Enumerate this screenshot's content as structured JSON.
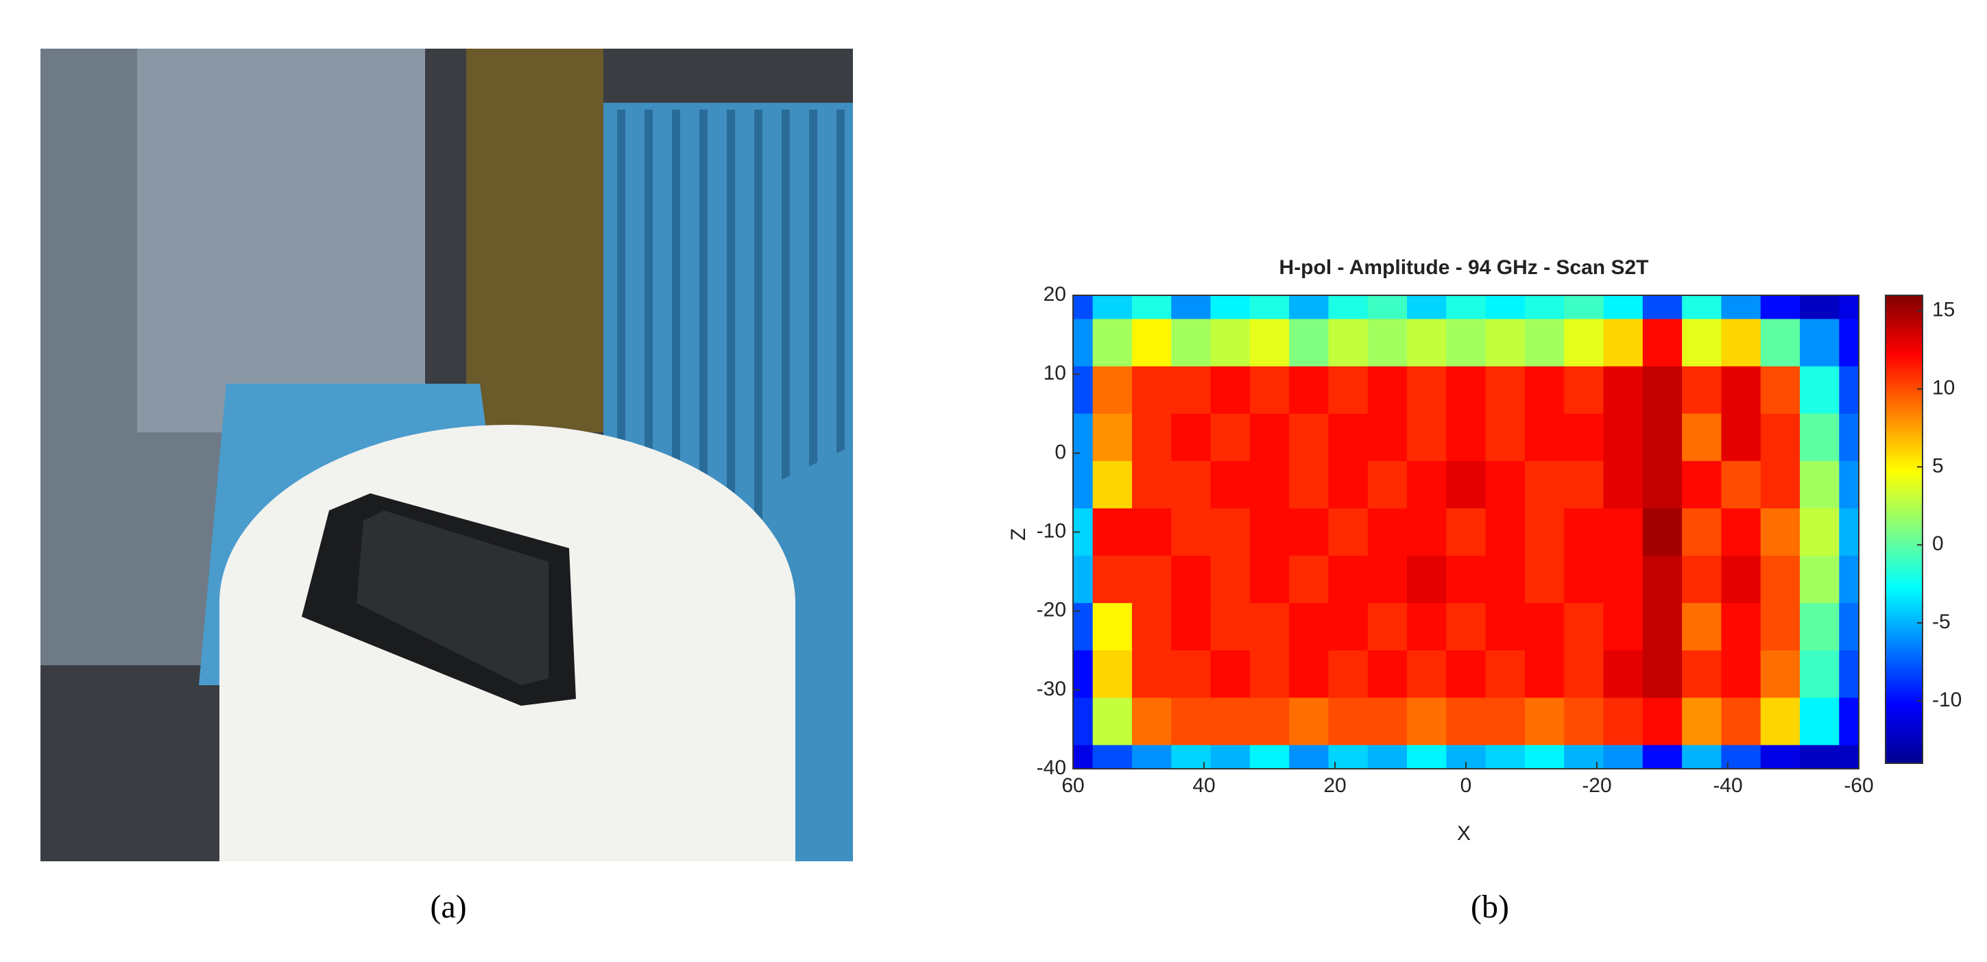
{
  "chart_data": {
    "type": "heatmap",
    "title": "H-pol - Amplitude  - 94 GHz - Scan S2T",
    "xlabel": "X",
    "ylabel": "Z",
    "x": [
      60,
      54,
      48,
      42,
      36,
      30,
      24,
      18,
      12,
      6,
      0,
      -6,
      -12,
      -18,
      -24,
      -30,
      -36,
      -42,
      -48,
      -54,
      -60
    ],
    "y": [
      20,
      14,
      8,
      2,
      -4,
      -10,
      -16,
      -22,
      -28,
      -34,
      -40
    ],
    "values": [
      [
        -8,
        -4,
        -2,
        -6,
        -3,
        -2,
        -5,
        -2,
        -1,
        -4,
        -2,
        -3,
        -2,
        -1,
        -3,
        -8,
        -2,
        -6,
        -10,
        -12,
        -11
      ],
      [
        -6,
        2,
        5,
        2,
        3,
        4,
        1,
        3,
        2,
        3,
        2,
        3,
        2,
        4,
        6,
        12,
        4,
        6,
        0,
        -6,
        -10
      ],
      [
        -8,
        9,
        11,
        11,
        12,
        11,
        12,
        11,
        12,
        11,
        12,
        11,
        12,
        11,
        13,
        14,
        11,
        13,
        10,
        -2,
        -8
      ],
      [
        -6,
        8,
        11,
        12,
        11,
        12,
        11,
        12,
        12,
        11,
        12,
        11,
        12,
        12,
        13,
        14,
        9,
        13,
        11,
        0,
        -7
      ],
      [
        -6,
        6,
        11,
        11,
        12,
        12,
        11,
        12,
        11,
        12,
        13,
        12,
        11,
        11,
        13,
        14,
        12,
        10,
        11,
        2,
        -6
      ],
      [
        -4,
        12,
        12,
        11,
        11,
        12,
        12,
        11,
        12,
        12,
        11,
        12,
        11,
        12,
        12,
        15,
        10,
        12,
        9,
        3,
        -5
      ],
      [
        -5,
        11,
        11,
        12,
        11,
        12,
        11,
        12,
        12,
        13,
        12,
        12,
        11,
        12,
        12,
        14,
        11,
        13,
        10,
        2,
        -6
      ],
      [
        -8,
        5,
        11,
        12,
        11,
        11,
        12,
        12,
        11,
        12,
        11,
        12,
        12,
        11,
        12,
        14,
        9,
        12,
        10,
        0,
        -7
      ],
      [
        -10,
        6,
        11,
        11,
        12,
        11,
        12,
        11,
        12,
        11,
        12,
        11,
        12,
        11,
        13,
        14,
        11,
        12,
        9,
        -1,
        -8
      ],
      [
        -9,
        3,
        9,
        10,
        10,
        10,
        9,
        10,
        10,
        9,
        10,
        10,
        9,
        10,
        11,
        12,
        8,
        10,
        6,
        -3,
        -10
      ],
      [
        -11,
        -8,
        -6,
        -4,
        -5,
        -3,
        -6,
        -4,
        -5,
        -3,
        -5,
        -4,
        -3,
        -5,
        -6,
        -10,
        -5,
        -8,
        -11,
        -12,
        -12
      ]
    ],
    "xlim": [
      60,
      -60
    ],
    "xticks": [
      60,
      40,
      20,
      0,
      -20,
      -40,
      -60
    ],
    "ylim": [
      -40,
      20
    ],
    "yticks": [
      20,
      10,
      0,
      -10,
      -20,
      -30,
      -40
    ],
    "colormap": "jet",
    "clim": [
      -14,
      16
    ],
    "colorbar_ticks": [
      15,
      10,
      5,
      0,
      -5,
      -10
    ],
    "caption": "(b)"
  },
  "photo": {
    "caption": "(a)"
  }
}
